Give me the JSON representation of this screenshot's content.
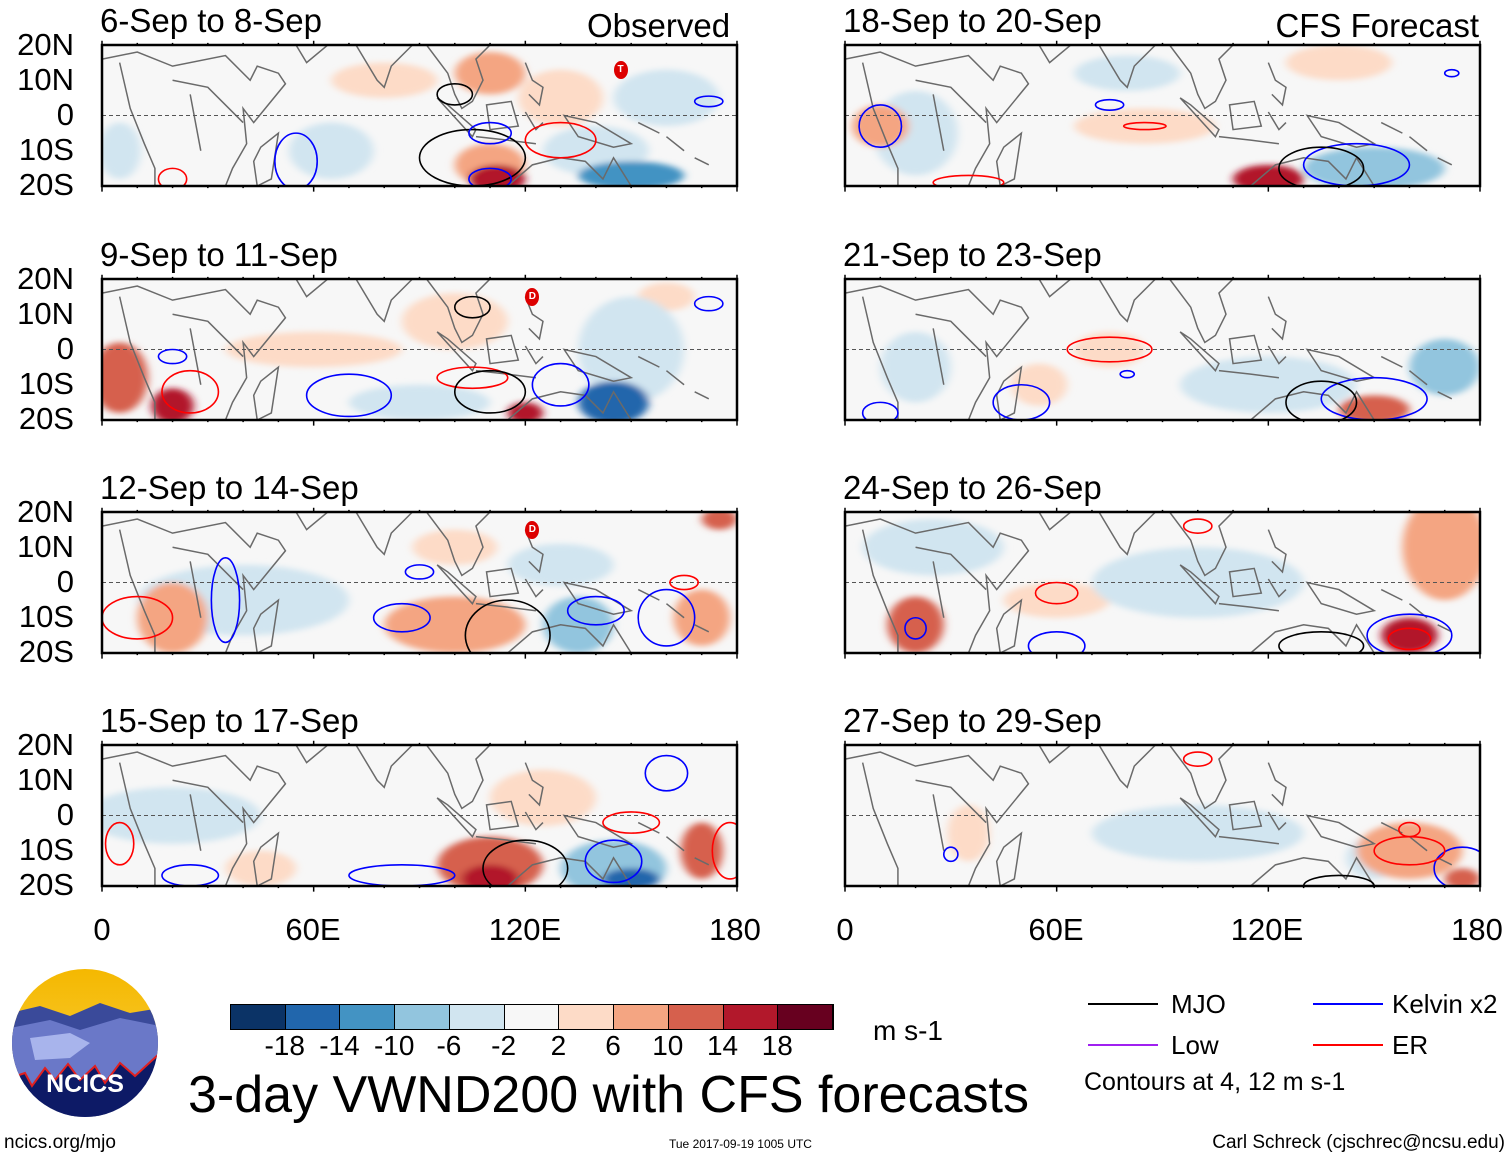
{
  "figure_title": "3-day VWND200 with CFS forecasts",
  "labels": {
    "observed": "Observed",
    "forecast": "CFS Forecast"
  },
  "lat_ticks": [
    "20N",
    "10N",
    "0",
    "10S",
    "20S"
  ],
  "lon_ticks": [
    "0",
    "60E",
    "120E",
    "180"
  ],
  "panels": [
    {
      "title": "6-Sep to 8-Sep",
      "column": "observed",
      "anomalies": [
        [
          80,
          10,
          15,
          5,
          4
        ],
        [
          110,
          12,
          10,
          6,
          6
        ],
        [
          130,
          5,
          12,
          8,
          4
        ],
        [
          110,
          -14,
          10,
          6,
          8
        ],
        [
          112,
          -18,
          8,
          4,
          16
        ],
        [
          150,
          -17,
          15,
          4,
          -12
        ],
        [
          140,
          -10,
          15,
          7,
          -6
        ],
        [
          65,
          -10,
          12,
          8,
          -6
        ],
        [
          5,
          -10,
          6,
          8,
          -4
        ],
        [
          160,
          5,
          15,
          8,
          -3
        ]
      ],
      "contours": [
        [
          "mjo",
          105,
          -12,
          15,
          8
        ],
        [
          "mjo",
          100,
          6,
          5,
          3
        ],
        [
          "kelvin",
          110,
          -18,
          6,
          3
        ],
        [
          "kelvin",
          55,
          -13,
          6,
          8
        ],
        [
          "kelvin",
          110,
          -5,
          6,
          3
        ],
        [
          "kelvin",
          172,
          4,
          4,
          1.5
        ],
        [
          "er",
          130,
          -7,
          10,
          5
        ],
        [
          "er",
          20,
          -18,
          4,
          3
        ]
      ],
      "storm": [
        147,
        13,
        "T"
      ]
    },
    {
      "title": "9-Sep to 11-Sep",
      "column": "observed",
      "anomalies": [
        [
          60,
          0,
          25,
          5,
          3
        ],
        [
          100,
          8,
          15,
          8,
          4
        ],
        [
          160,
          15,
          8,
          4,
          4
        ],
        [
          5,
          -8,
          8,
          10,
          12
        ],
        [
          20,
          -16,
          6,
          5,
          14
        ],
        [
          120,
          -18,
          5,
          3,
          16
        ],
        [
          150,
          0,
          15,
          15,
          -6
        ],
        [
          90,
          -15,
          20,
          5,
          -4
        ],
        [
          145,
          -15,
          10,
          6,
          -16
        ]
      ],
      "contours": [
        [
          "kelvin",
          20,
          -2,
          4,
          2
        ],
        [
          "kelvin",
          70,
          -13,
          12,
          6
        ],
        [
          "kelvin",
          130,
          -10,
          8,
          6
        ],
        [
          "kelvin",
          172,
          13,
          4,
          2
        ],
        [
          "er",
          105,
          -8,
          10,
          3
        ],
        [
          "er",
          25,
          -12,
          8,
          6
        ],
        [
          "mjo",
          110,
          -12,
          10,
          6
        ],
        [
          "mjo",
          105,
          12,
          5,
          3
        ]
      ],
      "storm": [
        122,
        15,
        "D"
      ]
    },
    {
      "title": "12-Sep to 14-Sep",
      "column": "observed",
      "anomalies": [
        [
          100,
          10,
          12,
          5,
          4
        ],
        [
          20,
          -10,
          10,
          10,
          8
        ],
        [
          100,
          -12,
          20,
          8,
          6
        ],
        [
          170,
          -10,
          8,
          8,
          8
        ],
        [
          175,
          18,
          5,
          3,
          10
        ],
        [
          40,
          -5,
          30,
          10,
          -4
        ],
        [
          130,
          5,
          15,
          6,
          -3
        ],
        [
          135,
          -12,
          10,
          8,
          -10
        ]
      ],
      "contours": [
        [
          "kelvin",
          35,
          -5,
          4,
          12
        ],
        [
          "kelvin",
          85,
          -10,
          8,
          4
        ],
        [
          "kelvin",
          90,
          3,
          4,
          2
        ],
        [
          "kelvin",
          140,
          -8,
          8,
          4
        ],
        [
          "kelvin",
          160,
          -10,
          8,
          8
        ],
        [
          "er",
          10,
          -10,
          10,
          6
        ],
        [
          "er",
          165,
          0,
          4,
          2
        ],
        [
          "mjo",
          115,
          -15,
          12,
          10
        ]
      ],
      "storm": [
        122,
        15,
        "D"
      ]
    },
    {
      "title": "15-Sep to 17-Sep",
      "column": "observed",
      "anomalies": [
        [
          125,
          5,
          15,
          8,
          4
        ],
        [
          45,
          -15,
          10,
          5,
          4
        ],
        [
          110,
          -14,
          15,
          8,
          10
        ],
        [
          110,
          -18,
          8,
          4,
          14
        ],
        [
          170,
          -10,
          6,
          8,
          10
        ],
        [
          20,
          0,
          25,
          8,
          -4
        ],
        [
          145,
          -15,
          15,
          8,
          -10
        ],
        [
          150,
          -18,
          8,
          3,
          -16
        ]
      ],
      "contours": [
        [
          "kelvin",
          160,
          12,
          6,
          5
        ],
        [
          "kelvin",
          145,
          -13,
          8,
          6
        ],
        [
          "kelvin",
          85,
          -17,
          15,
          3
        ],
        [
          "kelvin",
          25,
          -17,
          8,
          3
        ],
        [
          "er",
          150,
          -2,
          8,
          3
        ],
        [
          "er",
          5,
          -8,
          4,
          6
        ],
        [
          "er",
          178,
          -10,
          5,
          8
        ],
        [
          "mjo",
          120,
          -15,
          12,
          8
        ]
      ]
    },
    {
      "title": "18-Sep to 20-Sep",
      "column": "forecast",
      "anomalies": [
        [
          85,
          -3,
          20,
          5,
          4
        ],
        [
          140,
          15,
          15,
          5,
          4
        ],
        [
          10,
          -3,
          8,
          6,
          8
        ],
        [
          120,
          -18,
          10,
          4,
          14
        ],
        [
          20,
          -5,
          12,
          12,
          -4
        ],
        [
          80,
          12,
          15,
          5,
          -6
        ],
        [
          150,
          -15,
          20,
          6,
          -10
        ]
      ],
      "contours": [
        [
          "kelvin",
          10,
          -3,
          6,
          6
        ],
        [
          "kelvin",
          145,
          -14,
          15,
          6
        ],
        [
          "kelvin",
          75,
          3,
          4,
          1.5
        ],
        [
          "kelvin",
          172,
          12,
          2,
          1
        ],
        [
          "er",
          85,
          -3,
          6,
          1
        ],
        [
          "er",
          35,
          -19,
          10,
          2
        ],
        [
          "mjo",
          135,
          -15,
          12,
          6
        ]
      ]
    },
    {
      "title": "21-Sep to 23-Sep",
      "column": "forecast",
      "anomalies": [
        [
          75,
          0,
          10,
          5,
          3
        ],
        [
          55,
          -10,
          8,
          6,
          4
        ],
        [
          150,
          -17,
          10,
          4,
          10
        ],
        [
          20,
          -5,
          10,
          10,
          -4
        ],
        [
          120,
          -10,
          25,
          8,
          -4
        ],
        [
          170,
          -5,
          10,
          8,
          -8
        ]
      ],
      "contours": [
        [
          "kelvin",
          150,
          -14,
          15,
          6
        ],
        [
          "kelvin",
          50,
          -15,
          8,
          5
        ],
        [
          "kelvin",
          10,
          -18,
          5,
          3
        ],
        [
          "kelvin",
          80,
          -7,
          2,
          1
        ],
        [
          "er",
          75,
          0,
          12,
          3.5
        ],
        [
          "mjo",
          135,
          -15,
          10,
          6
        ]
      ]
    },
    {
      "title": "24-Sep to 26-Sep",
      "column": "forecast",
      "anomalies": [
        [
          60,
          -5,
          15,
          5,
          4
        ],
        [
          170,
          10,
          12,
          15,
          6
        ],
        [
          20,
          -12,
          8,
          8,
          10
        ],
        [
          160,
          -15,
          8,
          5,
          14
        ],
        [
          100,
          0,
          30,
          10,
          -4
        ],
        [
          25,
          10,
          20,
          8,
          -3
        ]
      ],
      "contours": [
        [
          "kelvin",
          20,
          -13,
          3,
          3
        ],
        [
          "kelvin",
          60,
          -18,
          8,
          4
        ],
        [
          "kelvin",
          160,
          -15,
          12,
          6
        ],
        [
          "er",
          60,
          -3,
          6,
          3
        ],
        [
          "er",
          160,
          -16,
          6,
          3
        ],
        [
          "er",
          100,
          16,
          4,
          2
        ],
        [
          "mjo",
          135,
          -18,
          12,
          4
        ]
      ]
    },
    {
      "title": "27-Sep to 29-Sep",
      "column": "forecast",
      "anomalies": [
        [
          35,
          -5,
          6,
          8,
          4
        ],
        [
          160,
          -10,
          15,
          8,
          6
        ],
        [
          175,
          -18,
          5,
          3,
          12
        ],
        [
          100,
          -5,
          30,
          8,
          -3
        ],
        [
          150,
          -12,
          8,
          6,
          -4
        ]
      ],
      "contours": [
        [
          "kelvin",
          30,
          -11,
          2,
          2
        ],
        [
          "kelvin",
          175,
          -15,
          8,
          6
        ],
        [
          "er",
          160,
          -10,
          10,
          4
        ],
        [
          "er",
          160,
          -4,
          3,
          2
        ],
        [
          "er",
          100,
          16,
          4,
          2
        ],
        [
          "mjo",
          140,
          -20,
          10,
          3
        ]
      ]
    }
  ],
  "colorbar": {
    "colors": [
      "#0b3366",
      "#2166ac",
      "#4393c3",
      "#92c5de",
      "#d1e5f0",
      "#f7f7f7",
      "#fddbc7",
      "#f4a582",
      "#d6604d",
      "#b2182b",
      "#67001f"
    ],
    "labels": [
      "-18",
      "-14",
      "-10",
      "-6",
      "-2",
      "2",
      "6",
      "10",
      "14",
      "18"
    ],
    "bounds": [
      -18,
      -14,
      -10,
      -6,
      -2,
      2,
      6,
      10,
      14,
      18
    ],
    "units": "m s-1"
  },
  "legend": {
    "items": [
      {
        "key": "mjo",
        "label": "MJO",
        "color": "#000000"
      },
      {
        "key": "kelvin",
        "label": "Kelvin x2",
        "color": "#0000ff"
      },
      {
        "key": "low",
        "label": "Low",
        "color": "#a020f0"
      },
      {
        "key": "er",
        "label": "ER",
        "color": "#ff0000"
      }
    ],
    "note": "Contours at 4, 12 m s-1"
  },
  "logo": {
    "text": "NCICS"
  },
  "footer": {
    "url": "ncics.org/mjo",
    "timestamp": "Tue 2017-09-19 1005 UTC",
    "author": "Carl Schreck (cjschrec@ncsu.edu)"
  }
}
